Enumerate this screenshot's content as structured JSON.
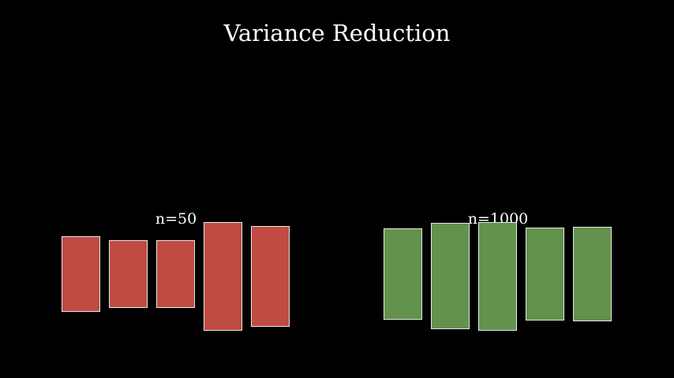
{
  "title": "Variance Reduction",
  "colors": {
    "background": "#000000",
    "small_sample": "#bf4b42",
    "large_sample": "#62924c",
    "outline": "#e8e8e8",
    "text": "#ffffff"
  },
  "groups": [
    {
      "label": "n=50",
      "color": "#bf4b42",
      "bars": [
        {
          "top": 0.5,
          "bottom": -0.3
        },
        {
          "top": 0.46,
          "bottom": -0.26
        },
        {
          "top": 0.46,
          "bottom": -0.26
        },
        {
          "top": 0.65,
          "bottom": -0.5
        },
        {
          "top": 0.61,
          "bottom": -0.46
        }
      ]
    },
    {
      "label": "n=1000",
      "color": "#62924c",
      "bars": [
        {
          "top": 0.58,
          "bottom": -0.38
        },
        {
          "top": 0.64,
          "bottom": -0.48
        },
        {
          "top": 0.65,
          "bottom": -0.5
        },
        {
          "top": 0.59,
          "bottom": -0.39
        },
        {
          "top": 0.6,
          "bottom": -0.4
        }
      ]
    }
  ]
}
